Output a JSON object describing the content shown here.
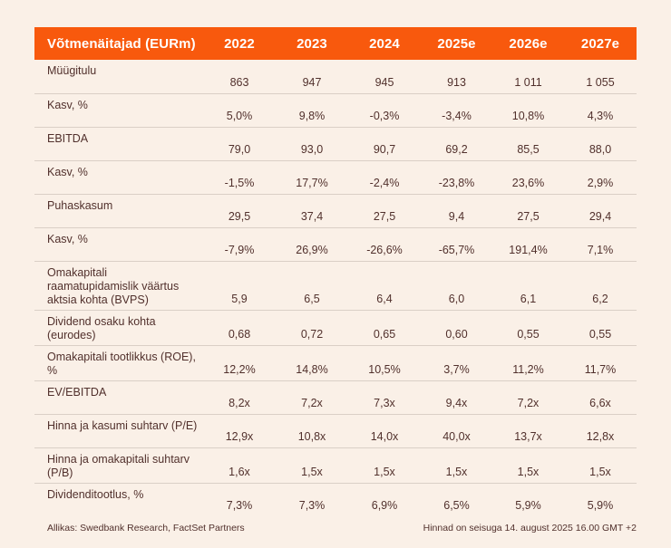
{
  "page": {
    "background": "#FAF0E7"
  },
  "table": {
    "accent_color": "#F8590D",
    "text_color": "#51302C",
    "divider_color": "#DACFC6",
    "header": {
      "label": "Võtmenäitajad (EURm)",
      "years": [
        "2022",
        "2023",
        "2024",
        "2025e",
        "2026e",
        "2027e"
      ]
    },
    "rows": [
      {
        "label": "Müügitulu",
        "values": [
          "863",
          "947",
          "945",
          "913",
          "1 011",
          "1 055"
        ]
      },
      {
        "label": "Kasv, %",
        "values": [
          "5,0%",
          "9,8%",
          "-0,3%",
          "-3,4%",
          "10,8%",
          "4,3%"
        ]
      },
      {
        "label": "EBITDA",
        "values": [
          "79,0",
          "93,0",
          "90,7",
          "69,2",
          "85,5",
          "88,0"
        ]
      },
      {
        "label": "Kasv, %",
        "values": [
          "-1,5%",
          "17,7%",
          "-2,4%",
          "-23,8%",
          "23,6%",
          "2,9%"
        ]
      },
      {
        "label": "Puhaskasum",
        "values": [
          "29,5",
          "37,4",
          "27,5",
          "9,4",
          "27,5",
          "29,4"
        ]
      },
      {
        "label": "Kasv, %",
        "values": [
          "-7,9%",
          "26,9%",
          "-26,6%",
          "-65,7%",
          "191,4%",
          "7,1%"
        ]
      },
      {
        "label": "Omakapitali raamatupidamislik väärtus aktsia kohta (BVPS)",
        "values": [
          "5,9",
          "6,5",
          "6,4",
          "6,0",
          "6,1",
          "6,2"
        ]
      },
      {
        "label": "Dividend osaku kohta (eurodes)",
        "values": [
          "0,68",
          "0,72",
          "0,65",
          "0,60",
          "0,55",
          "0,55"
        ]
      },
      {
        "label": "Omakapitali tootlikkus (ROE), %",
        "values": [
          "12,2%",
          "14,8%",
          "10,5%",
          "3,7%",
          "11,2%",
          "11,7%"
        ]
      },
      {
        "label": "EV/EBITDA",
        "values": [
          "8,2x",
          "7,2x",
          "7,3x",
          "9,4x",
          "7,2x",
          "6,6x"
        ]
      },
      {
        "label": "Hinna ja kasumi suhtarv (P/E)",
        "values": [
          "12,9x",
          "10,8x",
          "14,0x",
          "40,0x",
          "13,7x",
          "12,8x"
        ]
      },
      {
        "label": "Hinna ja omakapitali suhtarv (P/B)",
        "values": [
          "1,6x",
          "1,5x",
          "1,5x",
          "1,5x",
          "1,5x",
          "1,5x"
        ]
      },
      {
        "label": "Dividenditootlus, %",
        "values": [
          "7,3%",
          "7,3%",
          "6,9%",
          "6,5%",
          "5,9%",
          "5,9%"
        ]
      }
    ]
  },
  "footer": {
    "source": "Allikas: Swedbank Research, FactSet Partners",
    "price_note": "Hinnad on seisuga 14. august 2025 16.00 GMT +2"
  }
}
